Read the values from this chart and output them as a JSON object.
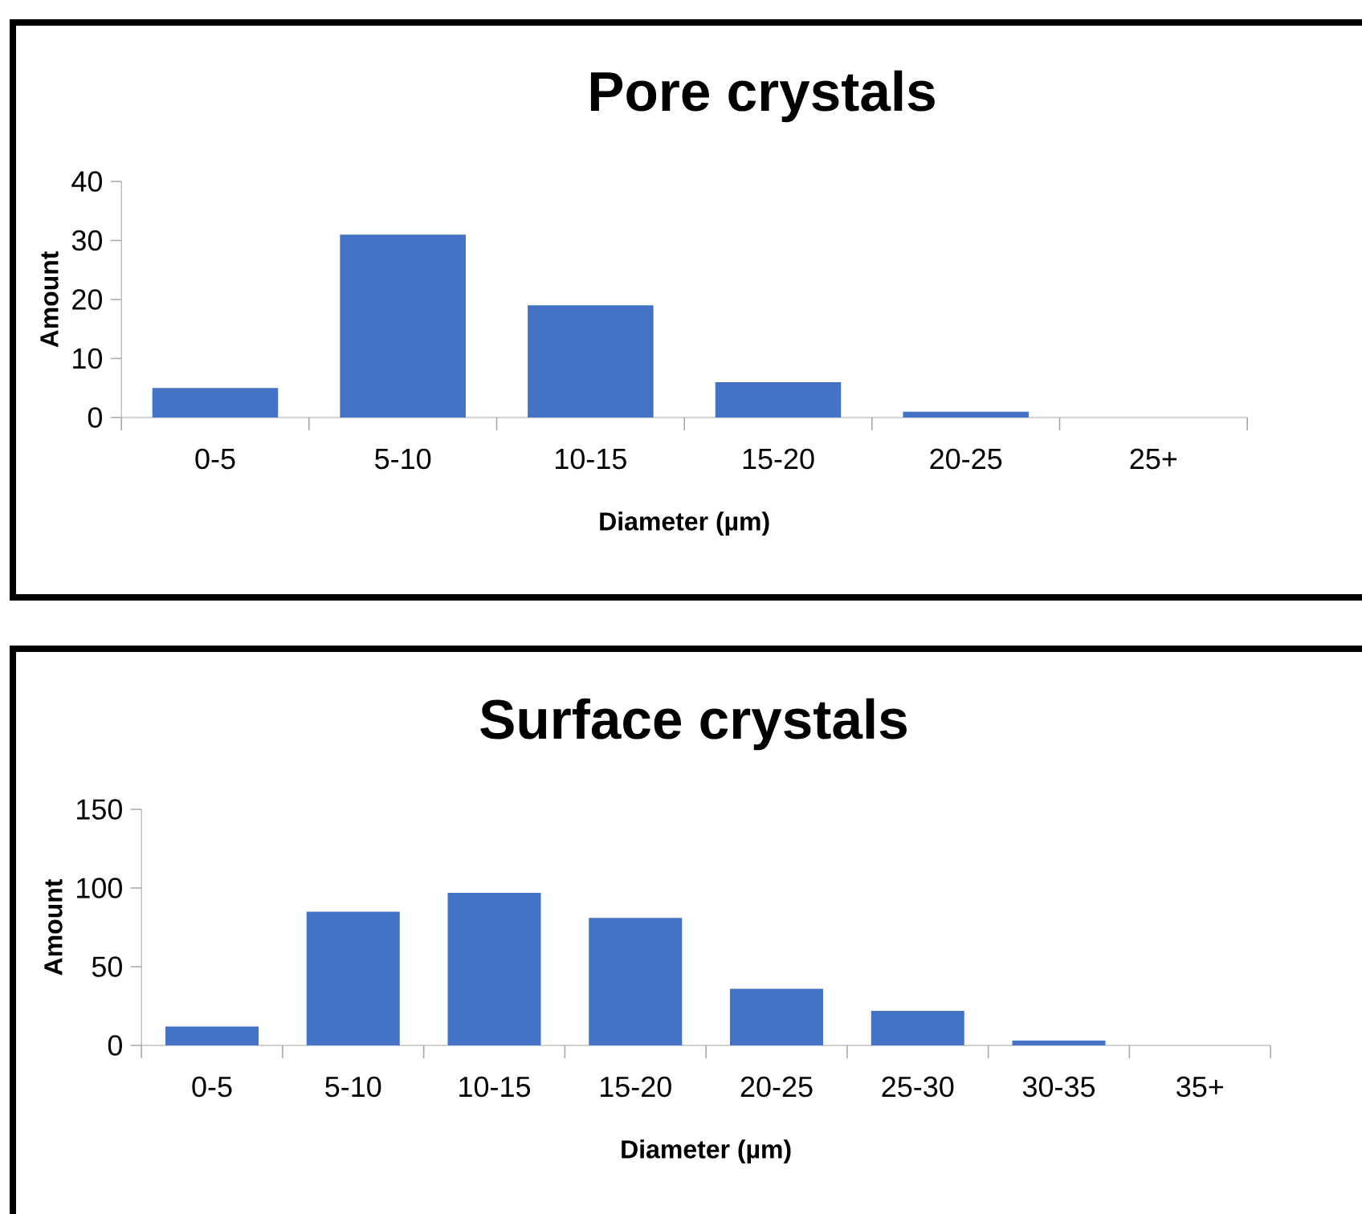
{
  "chart_data": [
    {
      "type": "bar",
      "title": "Pore crystals",
      "xlabel": "Diameter (µm)",
      "ylabel": "Amount",
      "categories": [
        "0-5",
        "5-10",
        "10-15",
        "15-20",
        "20-25",
        "25+"
      ],
      "values": [
        5,
        31,
        19,
        6,
        1,
        0
      ],
      "color": "#4472c4",
      "ylim": [
        0,
        40
      ],
      "yticks": [
        0,
        10,
        20,
        30,
        40
      ]
    },
    {
      "type": "bar",
      "title": "Surface crystals",
      "xlabel": "Diameter (µm)",
      "ylabel": "Amount",
      "categories": [
        "0-5",
        "5-10",
        "10-15",
        "15-20",
        "20-25",
        "25-30",
        "30-35",
        "35+"
      ],
      "values": [
        12,
        85,
        97,
        81,
        36,
        22,
        3,
        0
      ],
      "color": "#4472c4",
      "ylim": [
        0,
        150
      ],
      "yticks": [
        0,
        50,
        100,
        150
      ]
    }
  ]
}
